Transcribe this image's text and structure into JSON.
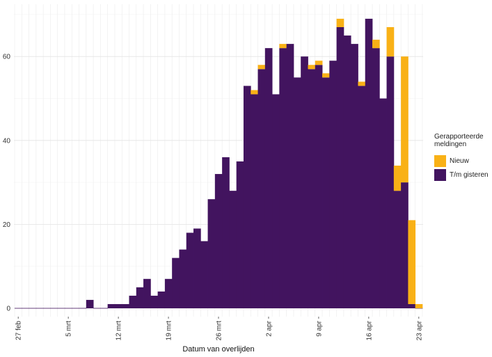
{
  "chart_data": {
    "type": "bar",
    "stacked": true,
    "xlabel": "Datum van overlijden",
    "ylabel": "",
    "ylim": [
      0,
      70
    ],
    "y_ticks": [
      0,
      20,
      40,
      60
    ],
    "grid": true,
    "legend_position": "right",
    "legend_title": "Gerapporteerde meldingen",
    "x_tick_labels": [
      {
        "index": 0,
        "label": "27 feb"
      },
      {
        "index": 7,
        "label": "5 mrt"
      },
      {
        "index": 14,
        "label": "12 mrt"
      },
      {
        "index": 21,
        "label": "19 mrt"
      },
      {
        "index": 28,
        "label": "26 mrt"
      },
      {
        "index": 35,
        "label": "2 apr"
      },
      {
        "index": 42,
        "label": "9 apr"
      },
      {
        "index": 49,
        "label": "16 apr"
      },
      {
        "index": 56,
        "label": "23 apr"
      }
    ],
    "categories": [
      "2020-02-27",
      "2020-02-28",
      "2020-02-29",
      "2020-03-01",
      "2020-03-02",
      "2020-03-03",
      "2020-03-04",
      "2020-03-05",
      "2020-03-06",
      "2020-03-07",
      "2020-03-08",
      "2020-03-09",
      "2020-03-10",
      "2020-03-11",
      "2020-03-12",
      "2020-03-13",
      "2020-03-14",
      "2020-03-15",
      "2020-03-16",
      "2020-03-17",
      "2020-03-18",
      "2020-03-19",
      "2020-03-20",
      "2020-03-21",
      "2020-03-22",
      "2020-03-23",
      "2020-03-24",
      "2020-03-25",
      "2020-03-26",
      "2020-03-27",
      "2020-03-28",
      "2020-03-29",
      "2020-03-30",
      "2020-03-31",
      "2020-04-01",
      "2020-04-02",
      "2020-04-03",
      "2020-04-04",
      "2020-04-05",
      "2020-04-06",
      "2020-04-07",
      "2020-04-08",
      "2020-04-09",
      "2020-04-10",
      "2020-04-11",
      "2020-04-12",
      "2020-04-13",
      "2020-04-14",
      "2020-04-15",
      "2020-04-16",
      "2020-04-17",
      "2020-04-18",
      "2020-04-19",
      "2020-04-20",
      "2020-04-21",
      "2020-04-22",
      "2020-04-23"
    ],
    "series": [
      {
        "name": "T/m gisteren",
        "color": "#42145f",
        "values": [
          0,
          0,
          0,
          0,
          0,
          0,
          0,
          0,
          0,
          0,
          2,
          0,
          0,
          1,
          1,
          1,
          3,
          5,
          7,
          3,
          4,
          7,
          12,
          14,
          18,
          19,
          16,
          26,
          32,
          36,
          28,
          35,
          53,
          51,
          57,
          62,
          51,
          62,
          63,
          55,
          60,
          57,
          58,
          55,
          59,
          67,
          65,
          63,
          53,
          69,
          62,
          50,
          60,
          28,
          30,
          1,
          0
        ]
      },
      {
        "name": "Nieuw",
        "color": "#f9b116",
        "values": [
          0,
          0,
          0,
          0,
          0,
          0,
          0,
          0,
          0,
          0,
          0,
          0,
          0,
          0,
          0,
          0,
          0,
          0,
          0,
          0,
          0,
          0,
          0,
          0,
          0,
          0,
          0,
          0,
          0,
          0,
          0,
          0,
          0,
          1,
          1,
          0,
          0,
          1,
          0,
          0,
          0,
          1,
          1,
          1,
          0,
          2,
          0,
          0,
          1,
          0,
          2,
          0,
          7,
          6,
          30,
          20,
          1
        ]
      }
    ]
  }
}
